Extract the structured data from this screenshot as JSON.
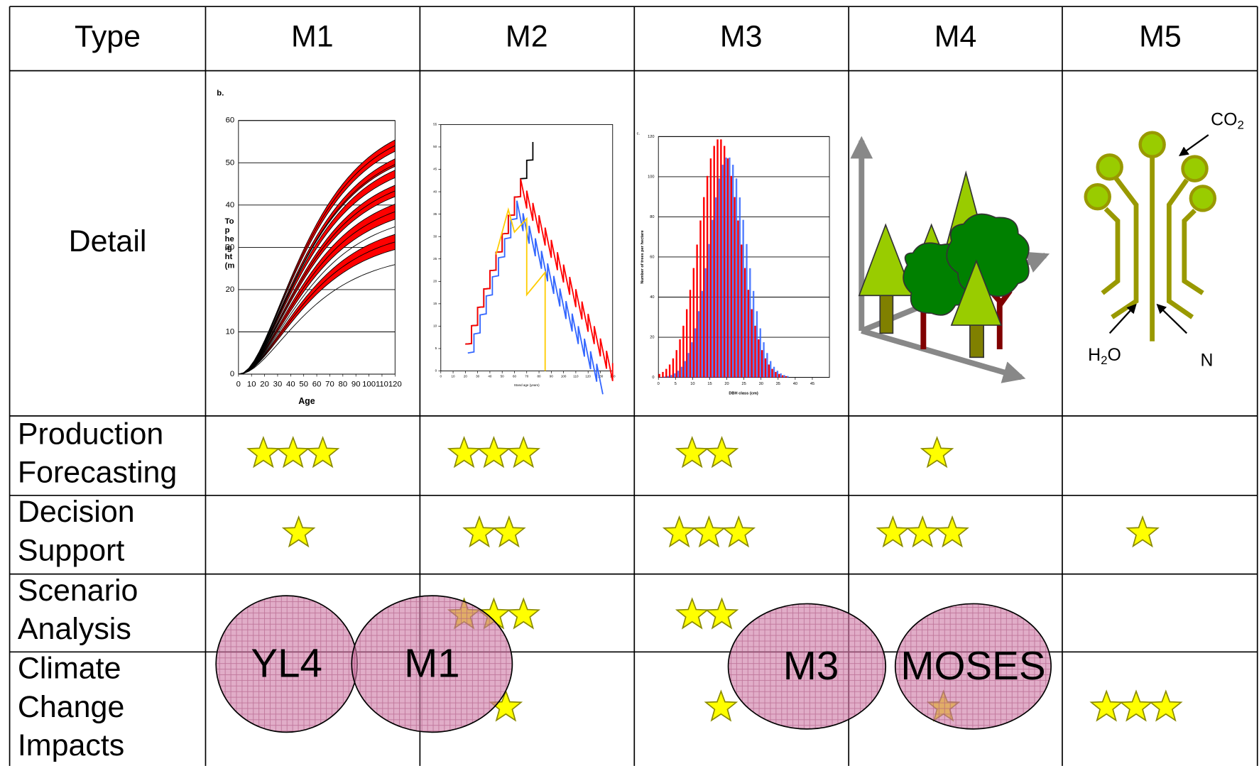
{
  "table": {
    "header": [
      "Type",
      "M1",
      "M2",
      "M3",
      "M4",
      "M5"
    ],
    "rows": [
      {
        "label": [
          "Detail"
        ]
      },
      {
        "label": [
          "Production",
          "Forecasting"
        ],
        "ratings": [
          3,
          3,
          2,
          1,
          null
        ]
      },
      {
        "label": [
          "Decision",
          "Support"
        ],
        "ratings": [
          1,
          2,
          3,
          3,
          1
        ]
      },
      {
        "label": [
          "Scenario",
          "Analysis"
        ],
        "ratings": [
          null,
          3,
          2,
          null,
          null
        ]
      },
      {
        "label": [
          "Climate",
          "Change",
          "Impacts"
        ],
        "ratings": [
          null,
          1,
          1,
          1,
          3
        ]
      }
    ]
  },
  "overlays": [
    "YL4",
    "M1",
    "M3",
    "MOSES"
  ],
  "figures": {
    "m1": {
      "panel": "b.",
      "y_label": [
        "To",
        "p",
        "he",
        "ig",
        "ht",
        "(m"
      ],
      "x_label": "Age",
      "xlim": [
        0,
        120
      ],
      "xticks": [
        0,
        10,
        20,
        30,
        40,
        50,
        60,
        70,
        80,
        90,
        100,
        110,
        120
      ],
      "ylim": [
        0,
        60
      ],
      "yticks": [
        0,
        10,
        20,
        30,
        40,
        50,
        60
      ]
    },
    "m2": {
      "x_label": "Stand age (years)",
      "xlim": [
        0,
        140
      ],
      "xticks": [
        0,
        10,
        20,
        30,
        40,
        50,
        60,
        70,
        80,
        90,
        100,
        110,
        120,
        130,
        140
      ],
      "ylim": [
        0,
        55
      ],
      "yticks": [
        0,
        5,
        10,
        15,
        20,
        25,
        30,
        35,
        40,
        45,
        50,
        55
      ]
    },
    "m3": {
      "panel": "c.",
      "x_label": "DBH class (cm)",
      "y_label": "Number of trees per hectare",
      "xlim": [
        0,
        50
      ],
      "xticks": [
        0,
        5,
        10,
        15,
        20,
        25,
        30,
        35,
        40,
        45
      ],
      "ylim": [
        0,
        120
      ],
      "yticks": [
        0,
        20,
        40,
        60,
        80,
        100,
        120
      ]
    },
    "m5": {
      "co2": [
        "CO",
        "2"
      ],
      "h2o": [
        "H",
        "2",
        "O"
      ],
      "n": "N"
    }
  }
}
